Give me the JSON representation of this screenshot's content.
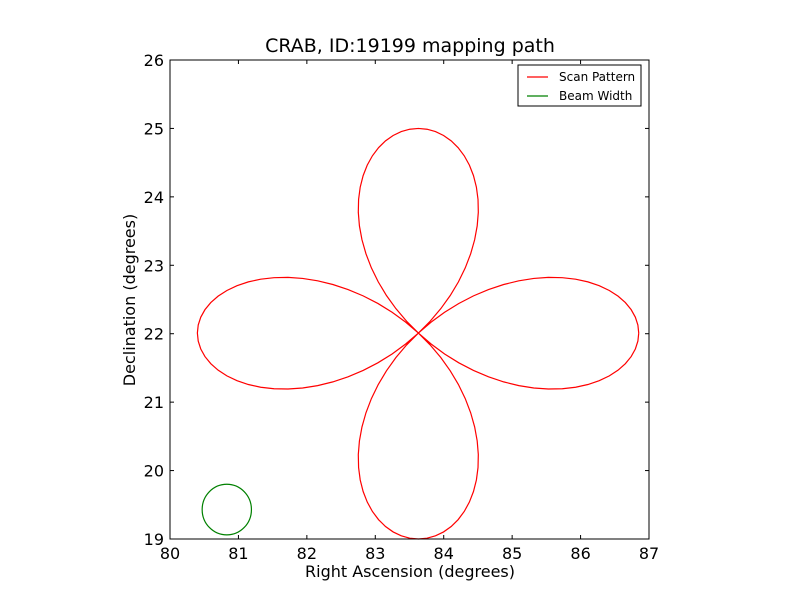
{
  "chart_data": {
    "type": "line",
    "title": "CRAB, ID:19199 mapping path",
    "xlabel": "Right Ascension (degrees)",
    "ylabel": "Declination (degrees)",
    "xlim": [
      80,
      87
    ],
    "ylim": [
      19,
      26
    ],
    "xticks": [
      80,
      81,
      82,
      83,
      84,
      85,
      86,
      87
    ],
    "yticks": [
      19,
      20,
      21,
      22,
      23,
      24,
      25,
      26
    ],
    "grid": false,
    "legend_position": "top-right",
    "series": [
      {
        "name": "Scan Pattern",
        "color": "#ff0000",
        "shape": "four-petal rose curve",
        "center": [
          83.63,
          22.01
        ],
        "petal_extent": {
          "ra_min": 80.4,
          "ra_max": 86.85,
          "dec_min": 19.0,
          "dec_max": 25.0
        }
      },
      {
        "name": "Beam Width",
        "color": "#008000",
        "shape": "circle",
        "center": [
          80.83,
          19.43
        ],
        "radius_ra": 0.36,
        "radius_dec": 0.37
      }
    ]
  }
}
